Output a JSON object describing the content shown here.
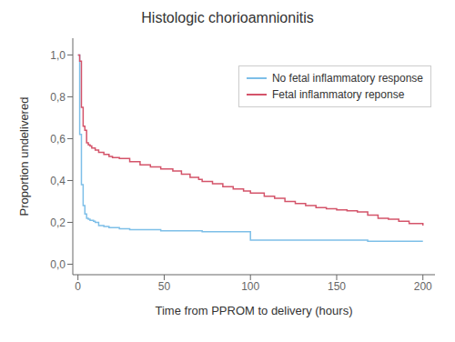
{
  "chart_data": {
    "type": "step",
    "title": "Histologic chorioamnionitis",
    "x_label": "Time from PPROM to delivery (hours)",
    "y_label": "Proportion undelivered",
    "xlim": [
      -3,
      207
    ],
    "ylim": [
      -0.05,
      1.08
    ],
    "xticks": [
      0,
      50,
      100,
      150,
      200
    ],
    "yticks": [
      {
        "value": 0.0,
        "label": "0,0"
      },
      {
        "value": 0.2,
        "label": "0,2"
      },
      {
        "value": 0.4,
        "label": "0,4"
      },
      {
        "value": 0.6,
        "label": "0,6"
      },
      {
        "value": 0.8,
        "label": "0,8"
      },
      {
        "value": 1.0,
        "label": "1,0"
      }
    ],
    "grid": false,
    "legend": "upper right",
    "series": [
      {
        "name": "No fetal inflammatory response",
        "color": "#7dbfe8",
        "x": [
          0,
          1,
          2,
          3,
          4,
          5,
          6,
          7,
          8,
          9,
          10,
          12,
          15,
          18,
          24,
          30,
          48,
          72,
          96,
          100,
          120,
          168,
          200
        ],
        "values": [
          1.0,
          0.62,
          0.38,
          0.28,
          0.24,
          0.22,
          0.215,
          0.21,
          0.21,
          0.205,
          0.2,
          0.185,
          0.18,
          0.175,
          0.17,
          0.165,
          0.16,
          0.155,
          0.155,
          0.115,
          0.115,
          0.11,
          0.11
        ]
      },
      {
        "name": "Fetal inflammatory reponse",
        "color": "#d4546a",
        "x": [
          0,
          1,
          2,
          3,
          4,
          5,
          6,
          7,
          8,
          10,
          12,
          15,
          18,
          20,
          24,
          30,
          36,
          42,
          48,
          55,
          60,
          65,
          70,
          72,
          78,
          84,
          90,
          96,
          100,
          108,
          114,
          120,
          126,
          132,
          138,
          144,
          150,
          156,
          162,
          168,
          174,
          180,
          186,
          192,
          200
        ],
        "values": [
          1.0,
          0.97,
          0.75,
          0.66,
          0.64,
          0.58,
          0.57,
          0.565,
          0.555,
          0.545,
          0.535,
          0.525,
          0.515,
          0.51,
          0.505,
          0.49,
          0.475,
          0.465,
          0.455,
          0.445,
          0.43,
          0.415,
          0.405,
          0.395,
          0.385,
          0.37,
          0.36,
          0.35,
          0.34,
          0.325,
          0.315,
          0.3,
          0.29,
          0.28,
          0.27,
          0.265,
          0.26,
          0.255,
          0.25,
          0.235,
          0.22,
          0.215,
          0.205,
          0.195,
          0.185
        ]
      }
    ]
  }
}
